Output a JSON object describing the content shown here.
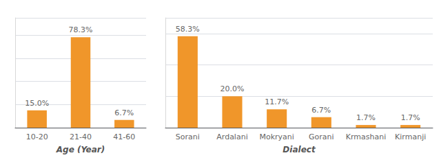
{
  "chart_data": [
    {
      "type": "bar",
      "xlabel": "Age (Year)",
      "categories": [
        "10-20",
        "21-40",
        "41-60"
      ],
      "values": [
        15.0,
        78.3,
        6.7
      ],
      "value_labels": [
        "15.0%",
        "78.3%",
        "6.7%"
      ],
      "color": "#F0962A",
      "ylim": [
        0,
        95
      ],
      "yticks": [
        0,
        20,
        40,
        60,
        80
      ],
      "grid": true,
      "data_labels": true,
      "tick_labels": "x"
    },
    {
      "type": "bar",
      "xlabel": "Dialect",
      "categories": [
        "Sorani",
        "Ardalani",
        "Mokryani",
        "Gorani",
        "Krmashani",
        "Kirmanji"
      ],
      "values": [
        58.3,
        20.0,
        11.7,
        6.7,
        1.7,
        1.7
      ],
      "value_labels": [
        "58.3%",
        "20.0%",
        "11.7%",
        "6.7%",
        "1.7%",
        "1.7%"
      ],
      "color": "#F0962A",
      "ylim": [
        0,
        70
      ],
      "yticks": [
        0,
        20,
        40,
        60
      ],
      "grid": true,
      "data_labels": true,
      "tick_labels": "x"
    }
  ]
}
